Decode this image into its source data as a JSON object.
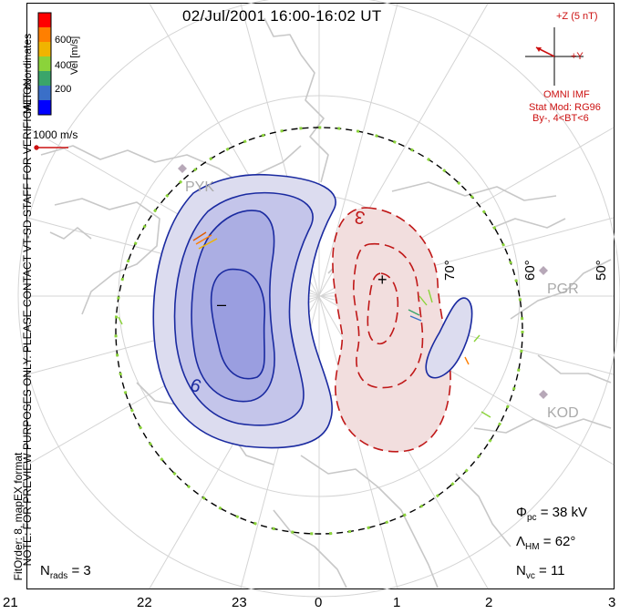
{
  "title": "02/Jul/2001  16:00-16:02  UT",
  "coordinate_label": "MLT coordinates",
  "velocity_scale": {
    "label": "Vel [m/s]",
    "ticks": [
      "600",
      "400",
      "200"
    ],
    "colors": [
      "#ff0000",
      "#ff7f00",
      "#f0b400",
      "#8bd33a",
      "#3aa56a",
      "#3a6fc8",
      "#0000ff"
    ]
  },
  "reference_vector": "1000 m/s",
  "watermark": "NOTE: FOR PREVIEW PURPOSES ONLY. PLEASE CONTACT VT-SD STAFF FOR VERIFICATION.",
  "fit_info": "FitOrder: 8,  mapEX format",
  "imf": {
    "z_label": "+Z (5 nT)",
    "y_label": "+Y",
    "source": "OMNI IMF",
    "model_line1": "Stat Mod: RG96",
    "model_line2": "By-, 4<BT<6"
  },
  "latitude_labels": [
    "70°",
    "60°",
    "50°"
  ],
  "stations": [
    "PYK",
    "PGR",
    "KOD"
  ],
  "contour_labels": {
    "negative": "9",
    "positive": "3"
  },
  "extrema_markers": {
    "minimum": "–",
    "maximum": "+"
  },
  "stats": {
    "phi_symbol": "Φ",
    "phi_sub": "pc",
    "phi_value": "= 38 kV",
    "lambda_symbol": "Λ",
    "lambda_sub": "HM",
    "lambda_value": "= 62°",
    "nvc_symbol": "N",
    "nvc_sub": "vc",
    "nvc_value": "= 11",
    "nrads_symbol": "N",
    "nrads_sub": "rads",
    "nrads_value": "= 3"
  },
  "mlt_ticks": [
    "21",
    "22",
    "23",
    "0",
    "1",
    "2",
    "3"
  ],
  "colors": {
    "negative_cell": "#1a2aa0",
    "positive_cell": "#c01818",
    "map_outline": "#c8c8c8",
    "grid": "#d0d0d0"
  }
}
